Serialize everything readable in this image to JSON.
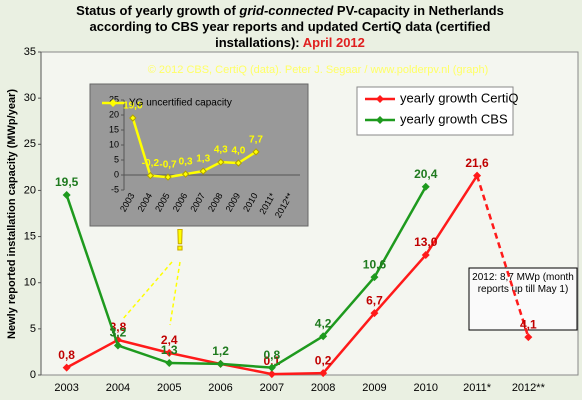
{
  "title_parts": [
    "Status of yearly growth of ",
    "grid-connected",
    " PV-capacity in Netherlands according to CBS year reports and updated CertiQ data (certified installations): ",
    "April 2012"
  ],
  "credit": "© 2012 CBS, CertiQ (data). Peter J. Segaar / www.polderpv.nl (graph)",
  "note": "2012: 8,7 MWp (month reports up till May 1)",
  "exclamation": "!",
  "chart_data": [
    {
      "type": "line",
      "ylabel": "Newly reported installation capacity (MWp/year)",
      "categories": [
        "2003",
        "2004",
        "2005",
        "2006",
        "2007",
        "2008",
        "2009",
        "2010",
        "2011*",
        "2012**"
      ],
      "ylim": [
        0,
        35
      ],
      "yticks": [
        0,
        5,
        10,
        15,
        20,
        25,
        30,
        35
      ],
      "series": [
        {
          "name": "yearly growth CertiQ",
          "color": "#ff1a1a",
          "label_color": "#c00000",
          "dashed_segments": [
            8
          ],
          "values": [
            0.8,
            3.8,
            2.4,
            1.2,
            0.1,
            0.2,
            6.7,
            13.0,
            21.6,
            4.1
          ],
          "value_labels": [
            "0,8",
            "3,8",
            "2,4",
            null,
            "0,1",
            "0,2",
            "6,7",
            "13,0",
            "21,6",
            "4,1"
          ]
        },
        {
          "name": "yearly growth CBS",
          "color": "#1e9a1e",
          "label_color": "#1e7a1e",
          "values": [
            19.5,
            3.2,
            1.3,
            1.2,
            0.8,
            4.2,
            10.6,
            20.4,
            null,
            null
          ],
          "value_labels": [
            "19,5",
            "3,2",
            "1,3",
            "1,2",
            "0,8",
            "4,2",
            "10,6",
            "20,4",
            null,
            null
          ]
        }
      ]
    },
    {
      "type": "line",
      "categories": [
        "2003",
        "2004",
        "2005",
        "2006",
        "2007",
        "2008",
        "2009",
        "2010",
        "2011*",
        "2012**"
      ],
      "ylim": [
        -5,
        25
      ],
      "yticks": [
        -5,
        0,
        5,
        10,
        15,
        20,
        25
      ],
      "series": [
        {
          "name": "YG uncertified capacity",
          "color": "#ffff00",
          "label_color": "#ffff00",
          "values": [
            19.0,
            -0.2,
            -0.7,
            0.3,
            1.3,
            4.3,
            4.0,
            7.7,
            null,
            null
          ],
          "value_labels": [
            "19,0",
            "-0,2",
            "-0,7",
            "0,3",
            "1,3",
            "4,3",
            "4,0",
            "7,7",
            null,
            null
          ]
        }
      ]
    }
  ]
}
